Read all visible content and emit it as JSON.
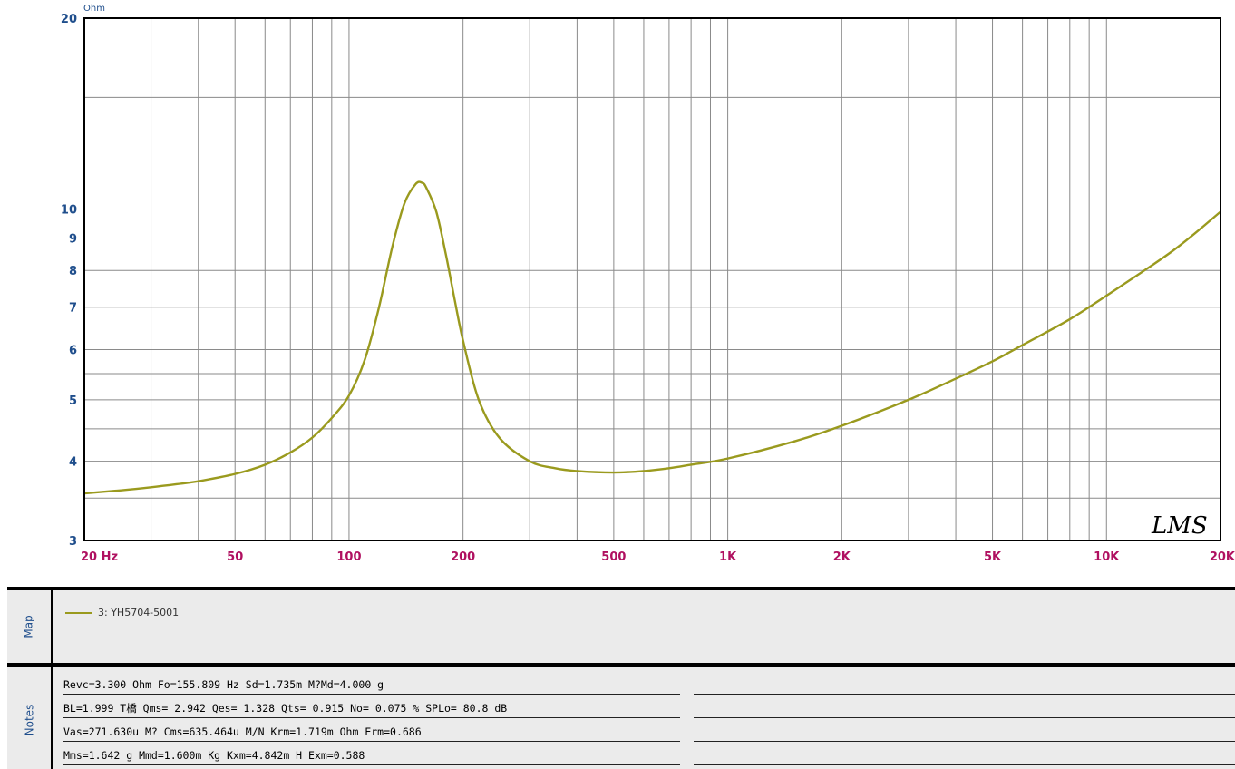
{
  "chart_data": {
    "type": "line",
    "y_unit_label": "Ohm",
    "x_scale": "log",
    "y_scale": "log",
    "xlim": [
      20,
      20000
    ],
    "ylim": [
      3,
      20
    ],
    "x_tick_labels": [
      {
        "value": 20,
        "label": "20  Hz"
      },
      {
        "value": 50,
        "label": "50"
      },
      {
        "value": 100,
        "label": "100"
      },
      {
        "value": 200,
        "label": "200"
      },
      {
        "value": 500,
        "label": "500"
      },
      {
        "value": 1000,
        "label": "1K"
      },
      {
        "value": 2000,
        "label": "2K"
      },
      {
        "value": 5000,
        "label": "5K"
      },
      {
        "value": 10000,
        "label": "10K"
      },
      {
        "value": 20000,
        "label": "20K"
      }
    ],
    "y_tick_labels": [
      {
        "value": 3,
        "label": "3"
      },
      {
        "value": 4,
        "label": "4"
      },
      {
        "value": 5,
        "label": "5"
      },
      {
        "value": 6,
        "label": "6"
      },
      {
        "value": 7,
        "label": "7"
      },
      {
        "value": 8,
        "label": "8"
      },
      {
        "value": 9,
        "label": "9"
      },
      {
        "value": 10,
        "label": "10"
      },
      {
        "value": 20,
        "label": "20"
      }
    ],
    "grid": true,
    "watermark": "LMS",
    "series": [
      {
        "name": "3: YH5704-5001",
        "color": "#9a9a1e",
        "x": [
          20,
          25,
          30,
          35,
          40,
          50,
          60,
          70,
          80,
          90,
          100,
          110,
          120,
          130,
          140,
          150,
          155.8,
          160,
          170,
          180,
          190,
          200,
          220,
          250,
          300,
          350,
          400,
          500,
          600,
          700,
          800,
          1000,
          1500,
          2000,
          3000,
          4000,
          5000,
          6000,
          8000,
          10000,
          15000,
          20000
        ],
        "y": [
          3.56,
          3.6,
          3.64,
          3.68,
          3.72,
          3.82,
          3.95,
          4.13,
          4.36,
          4.68,
          5.08,
          5.78,
          7.0,
          8.7,
          10.2,
          10.95,
          11.0,
          10.8,
          9.9,
          8.5,
          7.2,
          6.2,
          5.0,
          4.35,
          4.0,
          3.9,
          3.86,
          3.84,
          3.86,
          3.9,
          3.95,
          4.04,
          4.3,
          4.55,
          5.0,
          5.4,
          5.75,
          6.1,
          6.7,
          7.3,
          8.6,
          9.9
        ]
      }
    ]
  },
  "map": {
    "tab_label": "Map",
    "legend_label": "3: YH5704-5001"
  },
  "notes": {
    "tab_label": "Notes",
    "lines": [
      "Revc=3.300 Ohm  Fo=155.809 Hz  Sd=1.735m M?Md=4.000 g",
      "BL=1.999 T橋  Qms= 2.942  Qes= 1.328  Qts= 0.915  No= 0.075 %  SPLo= 80.8 dB",
      "Vas=271.630u M? Cms=635.464u M/N  Krm=1.719m Ohm  Erm=0.686",
      "Mms=1.642 g  Mmd=1.600m Kg  Kxm=4.842m H  Exm=0.588"
    ]
  }
}
